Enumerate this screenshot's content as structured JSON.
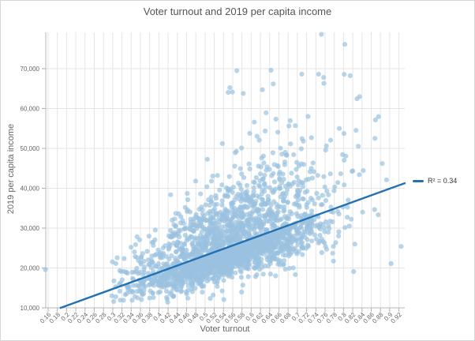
{
  "chart": {
    "title": "Voter turnout and 2019 per capita income"
  },
  "colors": {
    "background": "#ffffff",
    "border": "#d6d6d6",
    "grid": "#e4e4e4",
    "axis": "#b7b7b7",
    "tick": "#b0b0b0",
    "title_text": "#555555",
    "axis_title_text": "#666666",
    "tick_label_text": "#666666",
    "legend_text": "#333333",
    "point": "#9ac2e0",
    "trendline": "#2271b3"
  },
  "chart_data": {
    "type": "scatter",
    "title": "Voter turnout and 2019 per capita income",
    "xlabel": "Voter turnout",
    "ylabel": "2019 per capita income",
    "xlim": [
      0.1549,
      0.9327
    ],
    "ylim": [
      10000,
      79100
    ],
    "grid": true,
    "legend_position": "right",
    "x_tick_labels": [
      "0.16",
      "0.18",
      "0.2",
      "0.22",
      "0.24",
      "0.26",
      "0.28",
      "0.3",
      "0.32",
      "0.34",
      "0.36",
      "0.38",
      "0.4",
      "0.42",
      "0.44",
      "0.46",
      "0.48",
      "0.5",
      "0.52",
      "0.54",
      "0.56",
      "0.58",
      "0.6",
      "0.62",
      "0.64",
      "0.66",
      "0.68",
      "0.7",
      "0.72",
      "0.74",
      "0.76",
      "0.78",
      "0.8",
      "0.82",
      "0.84",
      "0.86",
      "0.88",
      "0.9",
      "0.92"
    ],
    "y_tick_values": [
      10000,
      20000,
      30000,
      40000,
      50000,
      60000,
      70000
    ],
    "y_tick_labels": [
      "10,000",
      "20,000",
      "30,000",
      "40,000",
      "50,000",
      "60,000",
      "70,000"
    ],
    "point_color": "#9ac2e0",
    "point_radius": 3.1,
    "point_opacity": 0.7,
    "trendline": {
      "x1": 0.187,
      "y1": 10000,
      "x2": 0.9327,
      "y2": 41270,
      "color": "#2271b3",
      "width": 2.4,
      "r_squared": 0.34,
      "legend_label": "R² = 0.34"
    },
    "scatter_cloud": {
      "seed": 11,
      "count": 2400,
      "x_mean": 0.553,
      "x_sd": 0.102,
      "x_clip": [
        0.295,
        0.925
      ],
      "trend_intercept": 2000,
      "trend_slope": 42000,
      "neg_prob": 0.58,
      "neg_sd_at_left": 2600,
      "neg_sd_at_right": 5200,
      "pos_sd_at_left": 4200,
      "pos_sd_at_right": 12500,
      "sd_x_range": [
        0.3,
        0.9
      ],
      "y_floor": 11400,
      "y_cap": 78500
    },
    "high_income_cluster": {
      "count": 26,
      "x_mean": 0.66,
      "x_sd": 0.085,
      "x_clip": [
        0.5,
        0.88
      ],
      "y_min": 44000,
      "y_max": 69000
    },
    "outlier_points": [
      [
        0.154,
        19600
      ],
      [
        0.752,
        78600
      ],
      [
        0.803,
        76100
      ],
      [
        0.569,
        69500
      ],
      [
        0.643,
        69600
      ],
      [
        0.746,
        68600
      ],
      [
        0.757,
        67800
      ],
      [
        0.868,
        52500
      ],
      [
        0.884,
        46200
      ],
      [
        0.925,
        25400
      ],
      [
        0.903,
        21100
      ],
      [
        0.822,
        19100
      ],
      [
        0.302,
        11600
      ],
      [
        0.342,
        11900
      ]
    ]
  }
}
